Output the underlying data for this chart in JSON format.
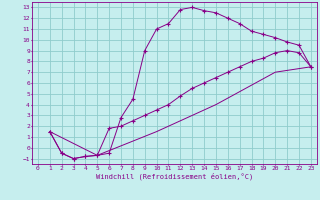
{
  "xlabel": "Windchill (Refroidissement éolien,°C)",
  "bg_color": "#c6eeee",
  "grid_color": "#90cccc",
  "line_color": "#880088",
  "xlim": [
    -0.5,
    23.5
  ],
  "ylim": [
    -1.5,
    13.5
  ],
  "xticks": [
    0,
    1,
    2,
    3,
    4,
    5,
    6,
    7,
    8,
    9,
    10,
    11,
    12,
    13,
    14,
    15,
    16,
    17,
    18,
    19,
    20,
    21,
    22,
    23
  ],
  "yticks": [
    -1,
    0,
    1,
    2,
    3,
    4,
    5,
    6,
    7,
    8,
    9,
    10,
    11,
    12,
    13
  ],
  "curve1_x": [
    1,
    2,
    3,
    4,
    5,
    6,
    7,
    8,
    9,
    10,
    11,
    12,
    13,
    14,
    15,
    16,
    17,
    18,
    19,
    20,
    21,
    22,
    23
  ],
  "curve1_y": [
    1.5,
    -0.5,
    -1.0,
    -0.8,
    -0.7,
    -0.5,
    2.8,
    4.5,
    9.0,
    11.0,
    11.5,
    12.8,
    13.0,
    12.7,
    12.5,
    12.0,
    11.5,
    10.8,
    10.5,
    10.2,
    9.8,
    9.5,
    7.5
  ],
  "curve2_x": [
    1,
    2,
    3,
    4,
    5,
    6,
    7,
    8,
    9,
    10,
    11,
    12,
    13,
    14,
    15,
    16,
    17,
    18,
    19,
    20,
    21,
    22,
    23
  ],
  "curve2_y": [
    1.5,
    -0.5,
    -1.0,
    -0.8,
    -0.7,
    1.8,
    2.0,
    2.5,
    3.0,
    3.5,
    4.0,
    4.8,
    5.5,
    6.0,
    6.5,
    7.0,
    7.5,
    8.0,
    8.3,
    8.8,
    9.0,
    8.8,
    7.5
  ],
  "curve3_x": [
    1,
    5,
    10,
    15,
    20,
    23
  ],
  "curve3_y": [
    1.5,
    -0.7,
    1.5,
    4.0,
    7.0,
    7.5
  ]
}
